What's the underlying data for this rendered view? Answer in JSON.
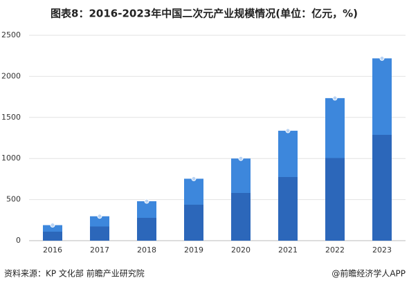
{
  "chart_data": {
    "type": "bar",
    "title": "图表8：2016-2023年中国二次元产业规模情况(单位：亿元，%)",
    "categories": [
      "2016",
      "2017",
      "2018",
      "2019",
      "2020",
      "2021",
      "2022",
      "2023"
    ],
    "values": [
      189,
      297,
      480,
      754,
      1000,
      1338,
      1735,
      2219
    ],
    "color": "#3d87dc",
    "ylim": [
      0,
      2500
    ],
    "yticks": [
      0,
      500,
      1000,
      1500,
      2000,
      2500
    ],
    "grid": true,
    "source": "资料来源：KP 文化部 前瞻产业研究院",
    "credit": "@前瞻经济学人APP"
  }
}
